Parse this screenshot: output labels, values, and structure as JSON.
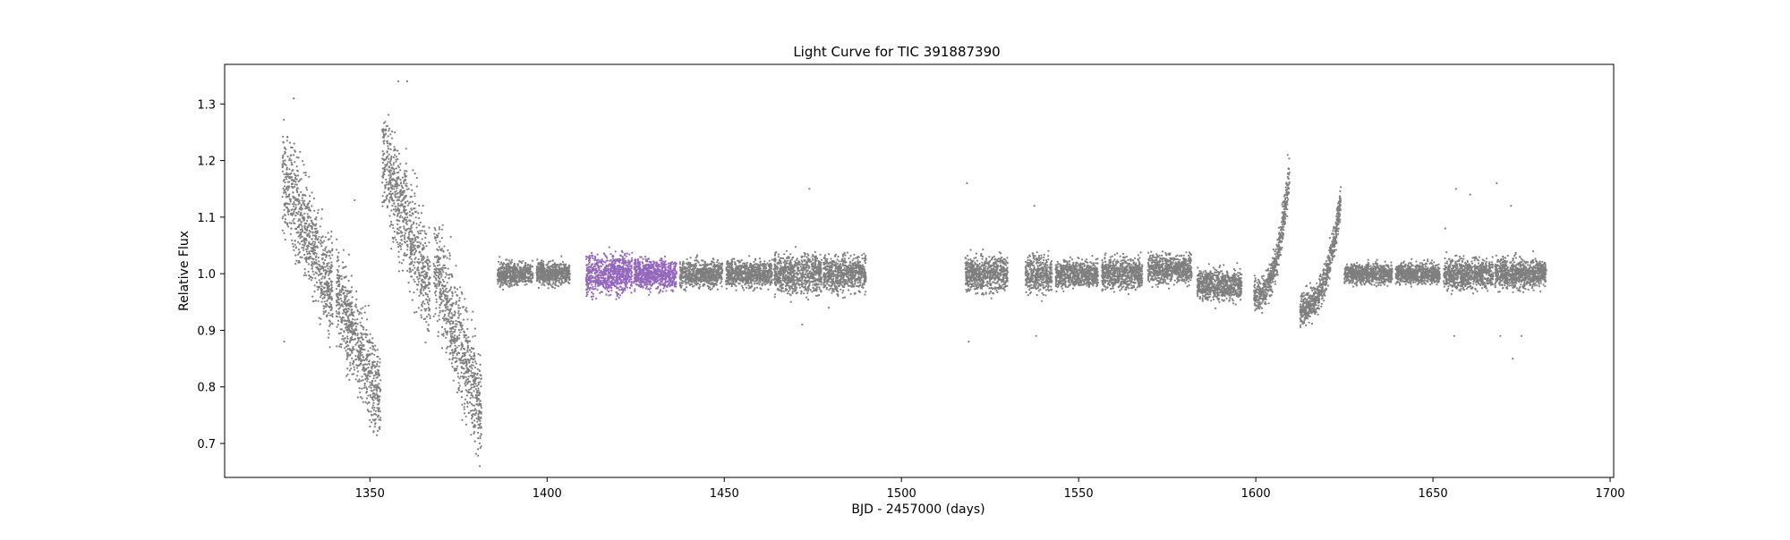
{
  "chart_data": {
    "type": "scatter",
    "title": "Light Curve for TIC 391887390",
    "xlabel": "BJD - 2457000 (days)",
    "ylabel": "Relative Flux",
    "xlim": [
      1309,
      1701
    ],
    "ylim": [
      0.64,
      1.37
    ],
    "xticks": [
      1350,
      1400,
      1450,
      1500,
      1550,
      1600,
      1650,
      1700
    ],
    "yticks": [
      0.7,
      0.8,
      0.9,
      1.0,
      1.1,
      1.2,
      1.3
    ],
    "grid": false,
    "colors": {
      "main": "#7f7f7f",
      "highlight": "#9467bd"
    },
    "series": [
      {
        "color": "#7f7f7f",
        "segments": [
          {
            "x_start": 1325.3,
            "x_end": 1339.5,
            "y_start": 1.17,
            "y_end": 0.97,
            "spread": 0.15,
            "shape": "linear"
          },
          {
            "x_start": 1340.5,
            "x_end": 1353.0,
            "y_start": 0.97,
            "y_end": 0.78,
            "spread": 0.14,
            "shape": "linear"
          },
          {
            "x_start": 1353.5,
            "x_end": 1367.0,
            "y_start": 1.21,
            "y_end": 0.97,
            "spread": 0.16,
            "shape": "linear"
          },
          {
            "x_start": 1368.0,
            "x_end": 1381.5,
            "y_start": 1.02,
            "y_end": 0.76,
            "spread": 0.16,
            "shape": "linear"
          },
          {
            "x_start": 1386.0,
            "x_end": 1396.0,
            "y_start": 1.0,
            "y_end": 1.0,
            "spread": 0.035,
            "shape": "linear"
          },
          {
            "x_start": 1397.0,
            "x_end": 1406.5,
            "y_start": 1.0,
            "y_end": 1.0,
            "spread": 0.035,
            "shape": "linear"
          },
          {
            "x_start": 1437.5,
            "x_end": 1449.5,
            "y_start": 1.0,
            "y_end": 1.0,
            "spread": 0.04,
            "shape": "linear"
          },
          {
            "x_start": 1450.5,
            "x_end": 1463.5,
            "y_start": 1.0,
            "y_end": 1.0,
            "spread": 0.04,
            "shape": "linear"
          },
          {
            "x_start": 1464.0,
            "x_end": 1477.5,
            "y_start": 1.0,
            "y_end": 1.0,
            "spread": 0.06,
            "shape": "linear"
          },
          {
            "x_start": 1478.0,
            "x_end": 1490.0,
            "y_start": 1.0,
            "y_end": 1.0,
            "spread": 0.055,
            "shape": "linear"
          },
          {
            "x_start": 1518.0,
            "x_end": 1530.0,
            "y_start": 1.0,
            "y_end": 1.0,
            "spread": 0.055,
            "shape": "linear"
          },
          {
            "x_start": 1535.0,
            "x_end": 1542.5,
            "y_start": 1.0,
            "y_end": 1.0,
            "spread": 0.055,
            "shape": "linear"
          },
          {
            "x_start": 1543.5,
            "x_end": 1555.5,
            "y_start": 1.0,
            "y_end": 1.0,
            "spread": 0.04,
            "shape": "linear"
          },
          {
            "x_start": 1556.5,
            "x_end": 1568.0,
            "y_start": 1.0,
            "y_end": 1.0,
            "spread": 0.045,
            "shape": "linear"
          },
          {
            "x_start": 1569.5,
            "x_end": 1582.0,
            "y_start": 1.01,
            "y_end": 1.01,
            "spread": 0.045,
            "shape": "linear"
          },
          {
            "x_start": 1583.5,
            "x_end": 1596.0,
            "y_start": 0.98,
            "y_end": 0.98,
            "spread": 0.045,
            "shape": "linear"
          },
          {
            "x_start": 1599.5,
            "x_end": 1609.5,
            "y_start": 0.96,
            "y_end": 1.18,
            "spread": 0.05,
            "shape": "curve"
          },
          {
            "x_start": 1612.5,
            "x_end": 1624.0,
            "y_start": 0.94,
            "y_end": 1.13,
            "spread": 0.05,
            "shape": "curve"
          },
          {
            "x_start": 1625.0,
            "x_end": 1638.5,
            "y_start": 1.0,
            "y_end": 1.0,
            "spread": 0.03,
            "shape": "linear"
          },
          {
            "x_start": 1639.5,
            "x_end": 1652.0,
            "y_start": 1.0,
            "y_end": 1.0,
            "spread": 0.03,
            "shape": "linear"
          },
          {
            "x_start": 1653.0,
            "x_end": 1667.0,
            "y_start": 1.0,
            "y_end": 1.0,
            "spread": 0.045,
            "shape": "linear"
          },
          {
            "x_start": 1667.5,
            "x_end": 1682.0,
            "y_start": 1.0,
            "y_end": 1.0,
            "spread": 0.045,
            "shape": "linear"
          }
        ],
        "outliers": [
          [
            1325.8,
            0.88
          ],
          [
            1328.5,
            1.31
          ],
          [
            1345.7,
            1.13
          ],
          [
            1358.0,
            1.34
          ],
          [
            1360.5,
            1.34
          ],
          [
            1381.0,
            0.66
          ],
          [
            1380.5,
            0.69
          ],
          [
            1474.0,
            1.15
          ],
          [
            1472.0,
            0.91
          ],
          [
            1479.5,
            0.94
          ],
          [
            1518.5,
            1.16
          ],
          [
            1519.0,
            0.88
          ],
          [
            1537.5,
            1.12
          ],
          [
            1538.0,
            0.89
          ],
          [
            1609.0,
            1.21
          ],
          [
            1656.5,
            1.15
          ],
          [
            1656.0,
            0.89
          ],
          [
            1660.5,
            1.14
          ],
          [
            1668.0,
            1.16
          ],
          [
            1669.0,
            0.89
          ],
          [
            1672.5,
            0.85
          ],
          [
            1675.0,
            0.89
          ],
          [
            1672.0,
            1.12
          ],
          [
            1653.5,
            1.08
          ]
        ]
      },
      {
        "color": "#9467bd",
        "segments": [
          {
            "x_start": 1411.0,
            "x_end": 1424.0,
            "y_start": 1.0,
            "y_end": 1.0,
            "spread": 0.06,
            "shape": "linear"
          },
          {
            "x_start": 1424.5,
            "x_end": 1436.5,
            "y_start": 1.0,
            "y_end": 1.0,
            "spread": 0.045,
            "shape": "linear"
          }
        ],
        "outliers": [
          [
            1413.0,
            0.96
          ],
          [
            1419.5,
            0.955
          ],
          [
            1422.0,
            1.035
          ],
          [
            1418.5,
            1.03
          ]
        ]
      }
    ]
  }
}
